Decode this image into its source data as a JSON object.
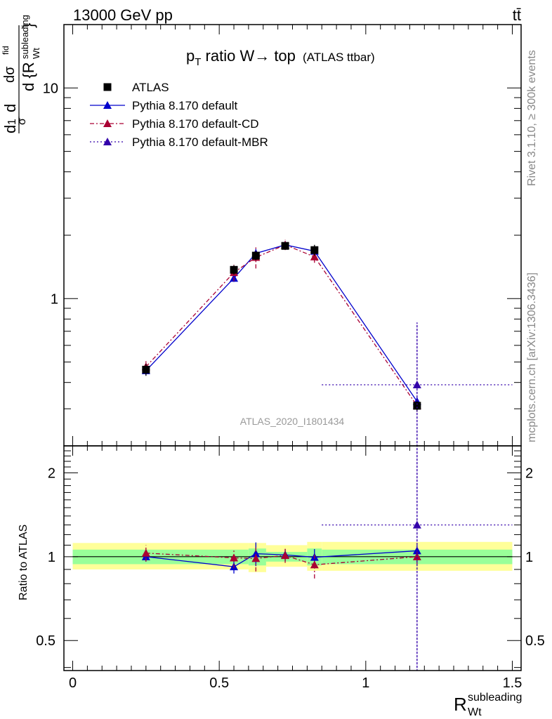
{
  "header": {
    "left": "13000 GeV pp",
    "right": "tt̄"
  },
  "side_labels": {
    "rivet": "Rivet 3.1.10, ≥ 300k events",
    "mcplots": "mcplots.cern.ch [arXiv:1306.3436]"
  },
  "analysis_id": "ATLAS_2020_I1801434",
  "colors": {
    "data": "#000000",
    "default": "#0000cc",
    "cd": "#aa0033",
    "mbr": "#3300aa",
    "band_inner": "#99ff99",
    "band_outer": "#ffff99"
  },
  "chart_data": [
    {
      "type": "line",
      "panel": "main",
      "title": "p_T ratio W→ top (ATLAS ttbar)",
      "title_parts": {
        "p": "p",
        "sub": "T",
        "rest": " ratio W→ top",
        "small": "(ATLAS ttbar)"
      },
      "ylabel": "dσ/d{R_Wt^subleading} · 1/σ",
      "yscale": "log",
      "ylim": [
        0.2,
        20
      ],
      "xlim": [
        -0.03,
        1.53
      ],
      "yticks_labeled": [
        1,
        10
      ],
      "legend_position": "top-left",
      "series": [
        {
          "name": "ATLAS",
          "marker": "square",
          "x": [
            0.25,
            0.55,
            0.625,
            0.725,
            0.825,
            1.175
          ],
          "y": [
            0.46,
            1.37,
            1.6,
            1.78,
            1.7,
            0.31
          ],
          "yerr": [
            0.03,
            0.07,
            0.08,
            0.06,
            0.1,
            0.02
          ]
        },
        {
          "name": "Pythia 8.170 default",
          "marker": "triangle",
          "line": "solid",
          "x": [
            0.25,
            0.55,
            0.625,
            0.725,
            0.825,
            1.175
          ],
          "y": [
            0.455,
            1.25,
            1.64,
            1.8,
            1.68,
            0.325
          ],
          "yerr": [
            0.02,
            0.05,
            0.08,
            0.07,
            0.08,
            0.015
          ]
        },
        {
          "name": "Pythia 8.170 default-CD",
          "marker": "triangle",
          "line": "dash-dot",
          "x": [
            0.25,
            0.55,
            0.625,
            0.725,
            0.825,
            1.175
          ],
          "y": [
            0.475,
            1.33,
            1.57,
            1.8,
            1.58,
            0.31
          ],
          "yerr": [
            0.03,
            0.12,
            0.18,
            0.1,
            0.1,
            0.02
          ]
        },
        {
          "name": "Pythia 8.170 default-MBR",
          "marker": "triangle",
          "line": "dotted",
          "x": [
            1.175
          ],
          "y": [
            0.39
          ],
          "xerr": [
            0.325
          ],
          "yerr_low": [
            0.39
          ],
          "yerr_high": [
            0.38
          ]
        }
      ]
    },
    {
      "type": "line",
      "panel": "ratio",
      "ylabel": "Ratio to ATLAS",
      "xlabel": "R_Wt^subleading",
      "xlabel_parts": {
        "base": "R",
        "sup": "subleading",
        "sub": "Wt"
      },
      "yscale": "log",
      "ylim": [
        0.39,
        2.5
      ],
      "xlim": [
        -0.03,
        1.53
      ],
      "xticks": [
        0,
        0.5,
        1,
        1.5
      ],
      "yticks_labeled": [
        0.5,
        1,
        2
      ],
      "bands": {
        "x_edges": [
          0,
          0.6,
          0.66,
          0.8,
          0.85,
          1.5
        ],
        "inner": [
          [
            0.94,
            1.06
          ],
          [
            0.93,
            1.07
          ],
          [
            0.96,
            1.04
          ],
          [
            0.93,
            1.07
          ],
          [
            0.94,
            1.06
          ]
        ],
        "outer": [
          [
            0.9,
            1.12
          ],
          [
            0.88,
            1.12
          ],
          [
            0.92,
            1.1
          ],
          [
            0.89,
            1.13
          ],
          [
            0.89,
            1.13
          ]
        ]
      },
      "series": [
        {
          "name": "Pythia 8.170 default",
          "x": [
            0.25,
            0.55,
            0.625,
            0.725,
            0.825,
            1.175
          ],
          "y": [
            1.0,
            0.92,
            1.025,
            1.015,
            0.995,
            1.05
          ],
          "yerr": [
            0.04,
            0.05,
            0.1,
            0.05,
            0.07,
            0.05
          ]
        },
        {
          "name": "Pythia 8.170 default-CD",
          "x": [
            0.25,
            0.55,
            0.625,
            0.725,
            0.825,
            1.175
          ],
          "y": [
            1.03,
            0.99,
            0.985,
            1.01,
            0.935,
            1.0
          ],
          "yerr": [
            0.07,
            0.08,
            0.1,
            0.06,
            0.1,
            0.06
          ]
        },
        {
          "name": "Pythia 8.170 default-MBR",
          "x": [
            1.175
          ],
          "y": [
            1.3
          ],
          "xerr": [
            0.325
          ],
          "yerr_low": [
            1.0
          ],
          "yerr_high": [
            2.0
          ]
        }
      ]
    }
  ]
}
